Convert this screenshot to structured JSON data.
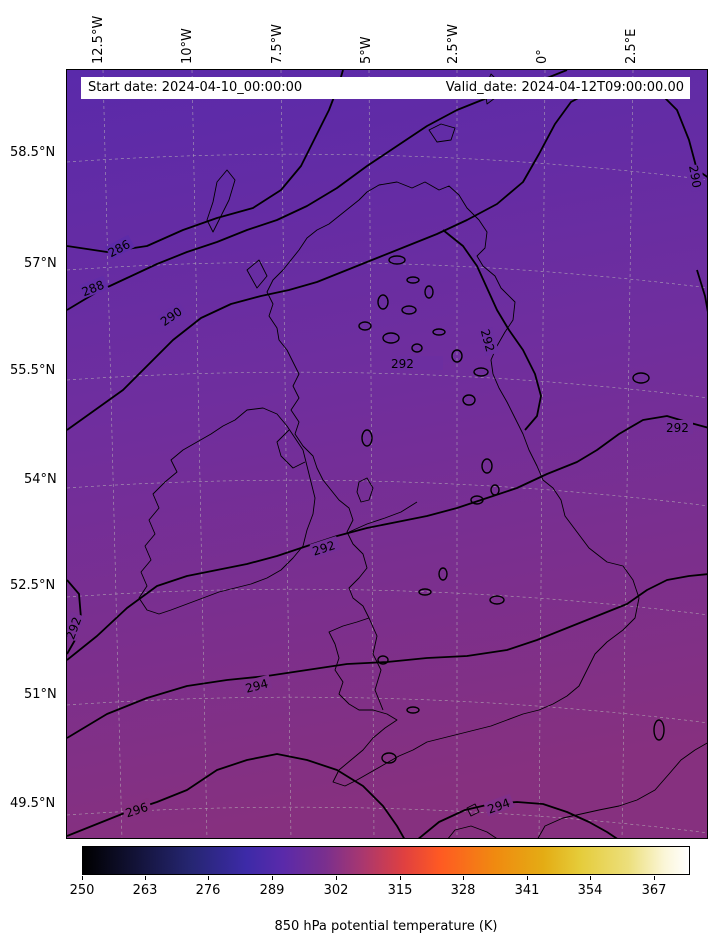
{
  "header": {
    "start_date": "Start date: 2024-04-10_00:00:00",
    "valid_date": "Valid_date: 2024-04-12T09:00:00.00"
  },
  "map": {
    "projection": "Lambert conformal",
    "extent": {
      "lon_min": -13.5,
      "lon_max": 4.0,
      "lat_min": 49.0,
      "lat_max": 59.5
    },
    "field": "850 hPa potential temperature",
    "field_colors": {
      "north": "#5a2aaa",
      "middle": "#6f2e9e",
      "south": "#86307f"
    },
    "longitude_labels": [
      "12.5°W",
      "10°W",
      "7.5°W",
      "5°W",
      "2.5°W",
      "0°",
      "2.5°E"
    ],
    "latitude_labels": [
      "58.5°N",
      "57°N",
      "55.5°N",
      "54°N",
      "52.5°N",
      "51°N",
      "49.5°N"
    ],
    "contour_labels": {
      "c286": "286",
      "c288": "288",
      "c290a": "290",
      "c290b": "290",
      "c292a": "292",
      "c292b": "292",
      "c292c": "292",
      "c292d": "292",
      "c292e": "292",
      "c294a": "294",
      "c294b": "294",
      "c296": "296"
    },
    "coastline_color": "#000000",
    "contour_color": "#000000",
    "gridline_color": "#bbbbbb"
  },
  "colorbar": {
    "label": "850 hPa potential temperature (K)",
    "ticks": [
      "250",
      "263",
      "276",
      "289",
      "302",
      "315",
      "328",
      "341",
      "354",
      "367"
    ],
    "range": [
      250,
      375
    ],
    "colormap": "CMRmap"
  }
}
